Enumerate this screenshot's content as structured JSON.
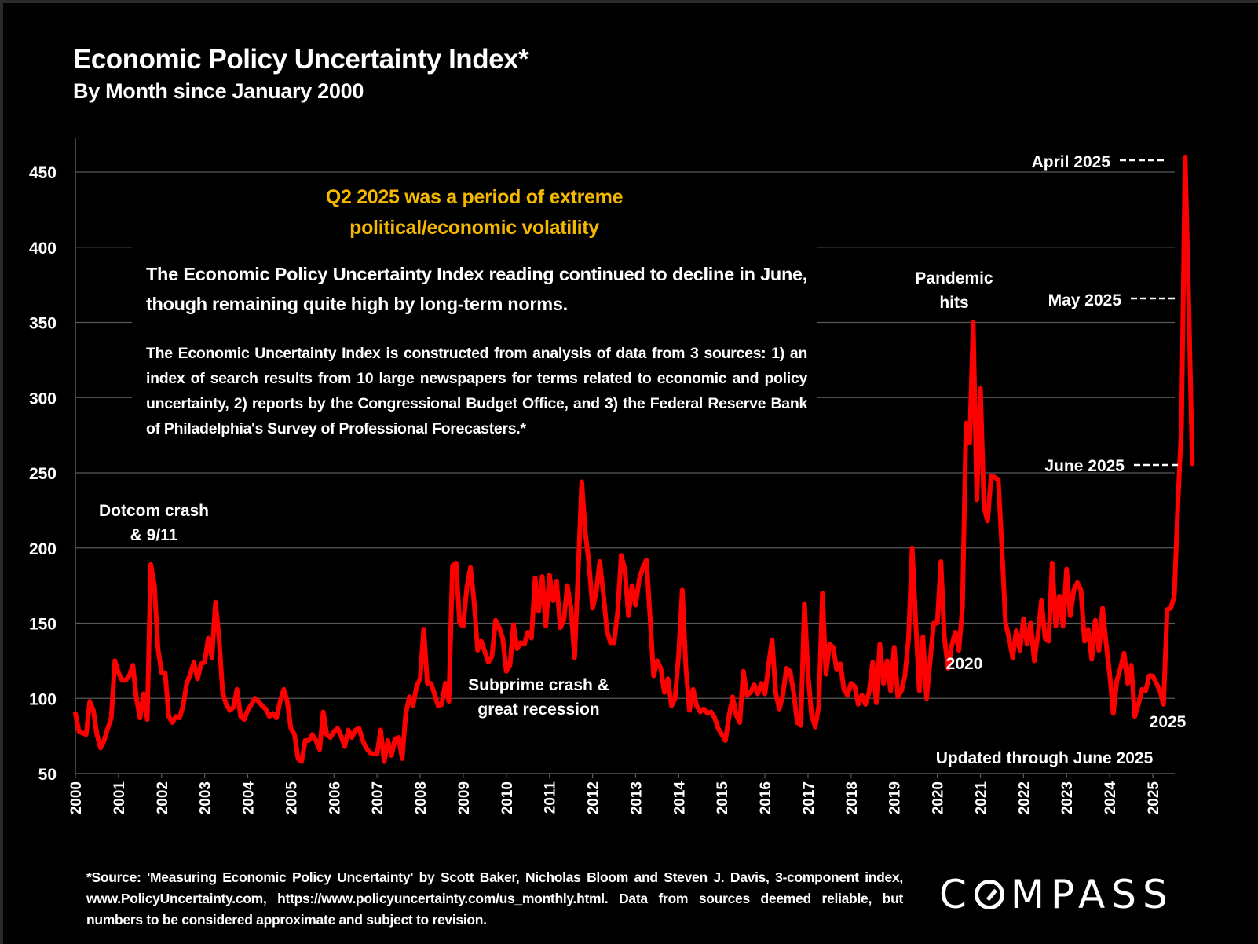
{
  "title": "Economic Policy Uncertainty Index*",
  "subtitle": "By Month since January 2000",
  "textbox": {
    "headline_line1": "Q2 2025 was a period of extreme",
    "headline_line2": "political/economic volatility",
    "lead": "The Economic Policy Uncertainty Index reading continued to decline in June, though remaining quite high by long-term norms.",
    "body": "The Economic Uncertainty Index is constructed from analysis of data from 3 sources:  1) an index of search results from 10 large newspapers for terms related to economic and policy uncertainty, 2) reports by the Congressional Budget Office, and 3) the Federal Reserve Bank of Philadelphia's Survey of Professional Forecasters.*"
  },
  "source_note": "*Source: 'Measuring Economic Policy Uncertainty' by Scott Baker, Nicholas Bloom and Steven J. Davis, 3-component  index,  www.PolicyUncertainty.com,  https://www.policyuncertainty.com/us_monthly.html. Data from sources deemed reliable, but numbers to be considered approximate and subject to revision.",
  "logo": {
    "text_before": "C",
    "text_after": "MPASS"
  },
  "colors": {
    "line": "#ff0000",
    "headline": "#f5b800",
    "grid": "#595959",
    "text": "#ffffff",
    "background": "#000000"
  },
  "chart_data": {
    "type": "line",
    "title": "Economic Policy Uncertainty Index*",
    "subtitle": "By Month since January 2000",
    "xlabel": "",
    "ylabel": "",
    "ylim": [
      50,
      475
    ],
    "yticks": [
      50,
      100,
      150,
      200,
      250,
      300,
      350,
      400,
      450
    ],
    "xticks": [
      "2000",
      "2001",
      "2002",
      "2003",
      "2004",
      "2005",
      "2006",
      "2007",
      "2008",
      "2009",
      "2010",
      "2011",
      "2012",
      "2013",
      "2014",
      "2015",
      "2016",
      "2017",
      "2018",
      "2019",
      "2020",
      "2021",
      "2022",
      "2023",
      "2024",
      "2025"
    ],
    "grid": "horizontal",
    "legend": "none",
    "start": "2000-01",
    "frequency": "monthly",
    "series": [
      {
        "name": "Economic Policy Uncertainty Index",
        "values": [
          90,
          78,
          77,
          76,
          98,
          92,
          76,
          67,
          72,
          80,
          87,
          125,
          117,
          112,
          112,
          115,
          122,
          100,
          87,
          103,
          86,
          189,
          175,
          133,
          117,
          117,
          88,
          84,
          88,
          87,
          95,
          110,
          116,
          124,
          113,
          123,
          124,
          140,
          127,
          164,
          140,
          104,
          96,
          92,
          94,
          106,
          88,
          86,
          92,
          96,
          100,
          98,
          95,
          93,
          88,
          90,
          87,
          98,
          106,
          98,
          80,
          76,
          60,
          58,
          72,
          72,
          76,
          72,
          66,
          91,
          76,
          74,
          78,
          80,
          75,
          68,
          79,
          74,
          79,
          80,
          72,
          67,
          64,
          63,
          63,
          79,
          58,
          72,
          62,
          73,
          74,
          60,
          90,
          101,
          95,
          108,
          113,
          146,
          110,
          110,
          103,
          95,
          96,
          110,
          98,
          188,
          190,
          150,
          148,
          174,
          187,
          165,
          132,
          138,
          131,
          124,
          128,
          152,
          147,
          140,
          118,
          122,
          149,
          133,
          137,
          136,
          144,
          140,
          180,
          158,
          181,
          148,
          182,
          165,
          178,
          147,
          152,
          175,
          160,
          127,
          185,
          244,
          210,
          190,
          160,
          170,
          191,
          170,
          145,
          137,
          137,
          158,
          195,
          186,
          155,
          175,
          162,
          179,
          187,
          192,
          155,
          115,
          125,
          120,
          104,
          113,
          95,
          100,
          130,
          172,
          120,
          92,
          106,
          95,
          91,
          93,
          90,
          91,
          87,
          80,
          76,
          72,
          88,
          101,
          89,
          84,
          118,
          102,
          104,
          109,
          103,
          110,
          103,
          122,
          139,
          104,
          93,
          102,
          120,
          118,
          104,
          84,
          82,
          163,
          116,
          89,
          81,
          95,
          170,
          116,
          136,
          134,
          119,
          123,
          106,
          102,
          110,
          108,
          96,
          102,
          96,
          104,
          124,
          97,
          136,
          110,
          125,
          105,
          134,
          101,
          105,
          115,
          140,
          200,
          150,
          105,
          141,
          100,
          125,
          150,
          150,
          191,
          140,
          120,
          135,
          144,
          132,
          160,
          283,
          270,
          350,
          232,
          306,
          227,
          218,
          248,
          247,
          245,
          200,
          150,
          140,
          127,
          145,
          132,
          153,
          136,
          150,
          125,
          142,
          165,
          140,
          138,
          190,
          148,
          168,
          148,
          186,
          155,
          172,
          177,
          172,
          138,
          146,
          126,
          152,
          132,
          160,
          137,
          116,
          90,
          112,
          120,
          130,
          110,
          122,
          88,
          96,
          106,
          105,
          115,
          115,
          110,
          105,
          96,
          159,
          160,
          168,
          230,
          282,
          460,
          366,
          256
        ]
      }
    ],
    "annotations": [
      {
        "text_lines": [
          "Dotcom crash",
          "& 9/11"
        ],
        "x": "2001-10",
        "y": 205
      },
      {
        "text_lines": [
          "Subprime crash &",
          "great recession"
        ],
        "x": "2009-09",
        "y": 100
      },
      {
        "text_lines": [
          "Pandemic",
          "hits"
        ],
        "x": "2020-05",
        "y": 370
      },
      {
        "text_lines": [
          "2020"
        ],
        "x": "2020-08",
        "y": 124
      },
      {
        "text_lines": [
          "2025"
        ],
        "x": "2025-03",
        "y": 85
      },
      {
        "text_lines": [
          "April 2025"
        ],
        "x": "2025-04",
        "y": 460,
        "leader": "dashed"
      },
      {
        "text_lines": [
          "May 2025"
        ],
        "x": "2025-05",
        "y": 366,
        "leader": "dashed"
      },
      {
        "text_lines": [
          "June 2025"
        ],
        "x": "2025-06",
        "y": 256,
        "leader": "dashed"
      },
      {
        "text_lines": [
          "Updated through June 2025"
        ],
        "x": "2023-06",
        "y": 62
      }
    ]
  }
}
